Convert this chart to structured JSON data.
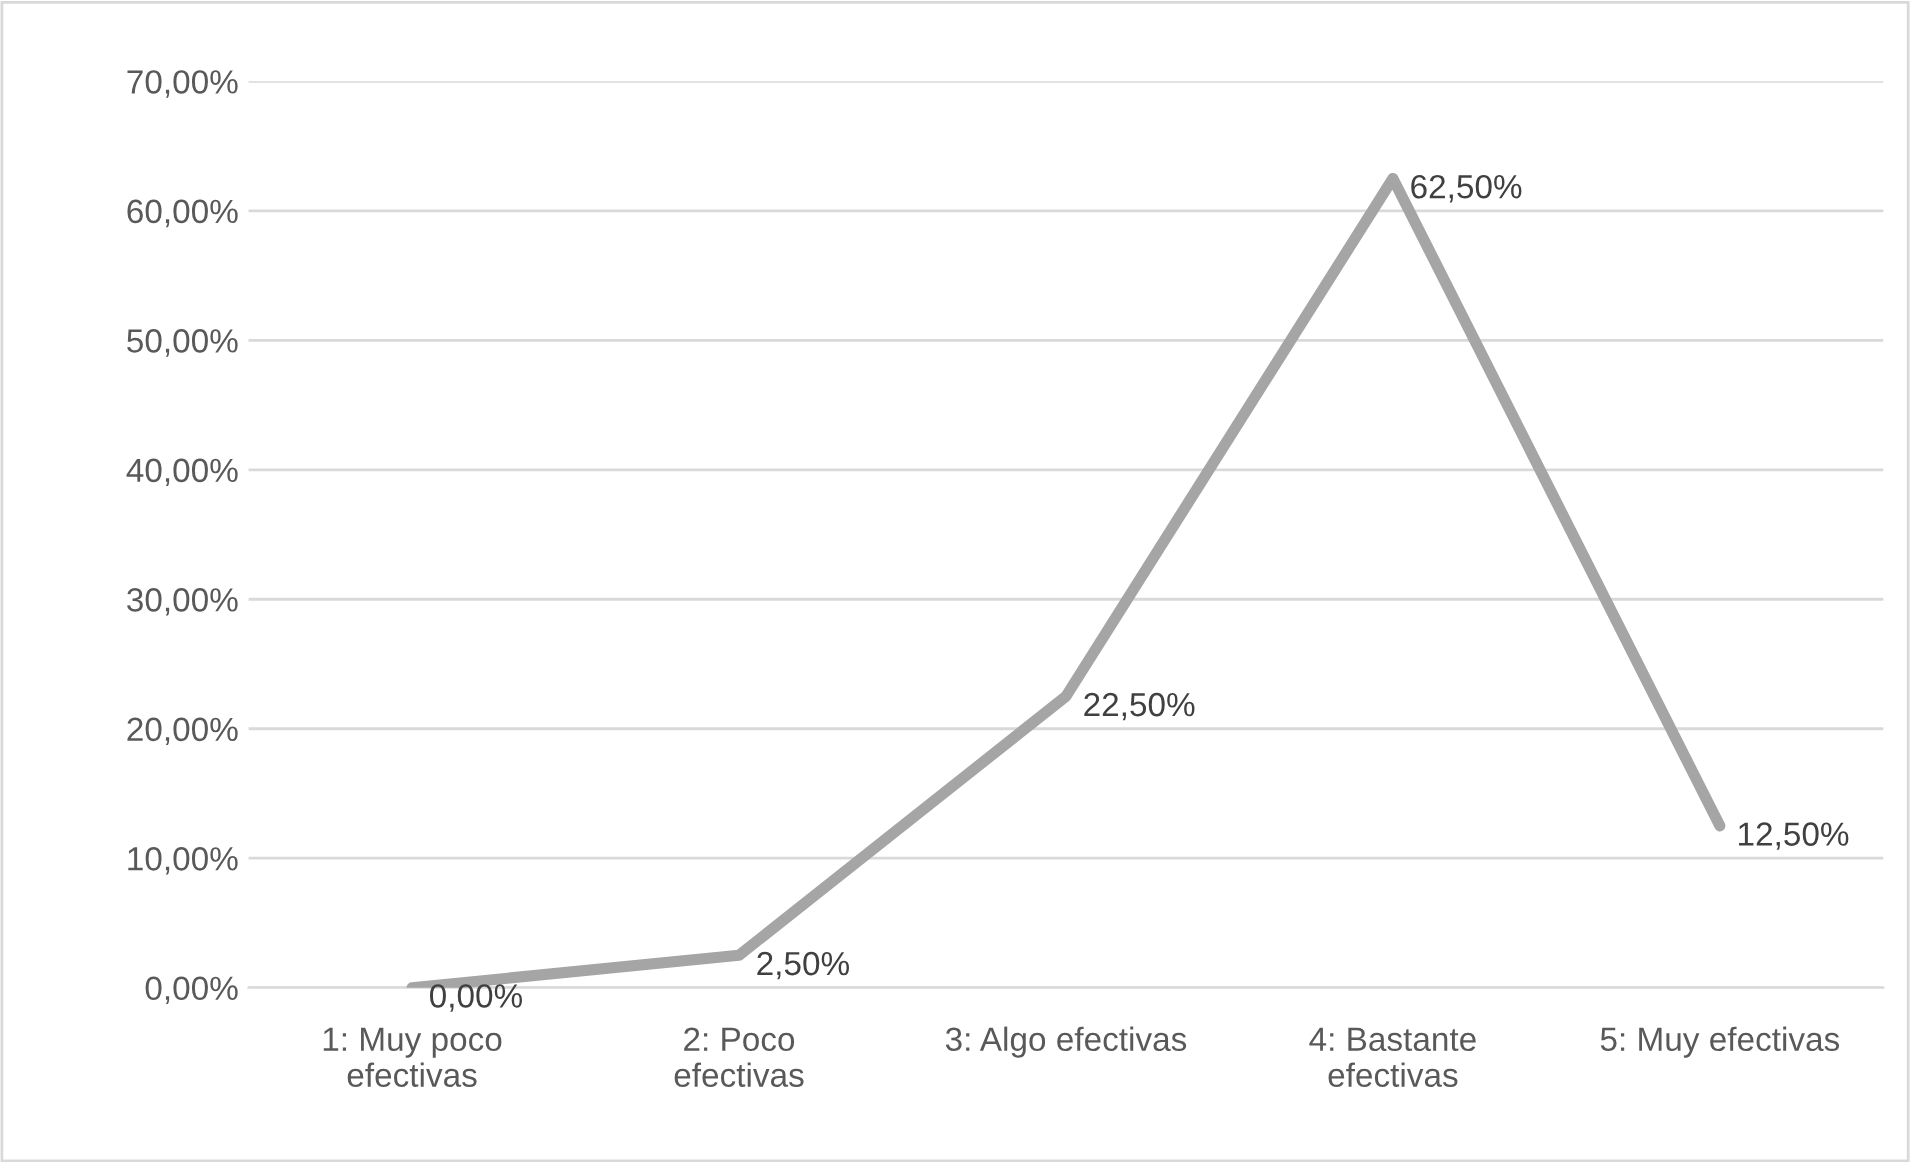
{
  "chart_data": {
    "type": "line",
    "categories": [
      "1: Muy poco\nefectivas",
      "2: Poco\nefectivas",
      "3: Algo efectivas",
      "4: Bastante\nefectivas",
      "5: Muy efectivas"
    ],
    "series": [
      {
        "color": "#a5a5a5",
        "values": [
          0,
          2.5,
          22.5,
          62.5,
          12.5
        ],
        "value_labels": [
          "0,00%",
          "2,50%",
          "22,50%",
          "62,50%",
          "12,50%"
        ]
      }
    ],
    "ylim": [
      0,
      70
    ],
    "yticks": [
      {
        "value": 0,
        "label": "0,00%"
      },
      {
        "value": 10,
        "label": "10,00%"
      },
      {
        "value": 20,
        "label": "20,00%"
      },
      {
        "value": 30,
        "label": "30,00%"
      },
      {
        "value": 40,
        "label": "40,00%"
      },
      {
        "value": 50,
        "label": "50,00%"
      },
      {
        "value": 60,
        "label": "60,00%"
      },
      {
        "value": 70,
        "label": "70,00%"
      }
    ],
    "grid": "y",
    "legend": false,
    "marker": "none",
    "line_style": "solid"
  }
}
